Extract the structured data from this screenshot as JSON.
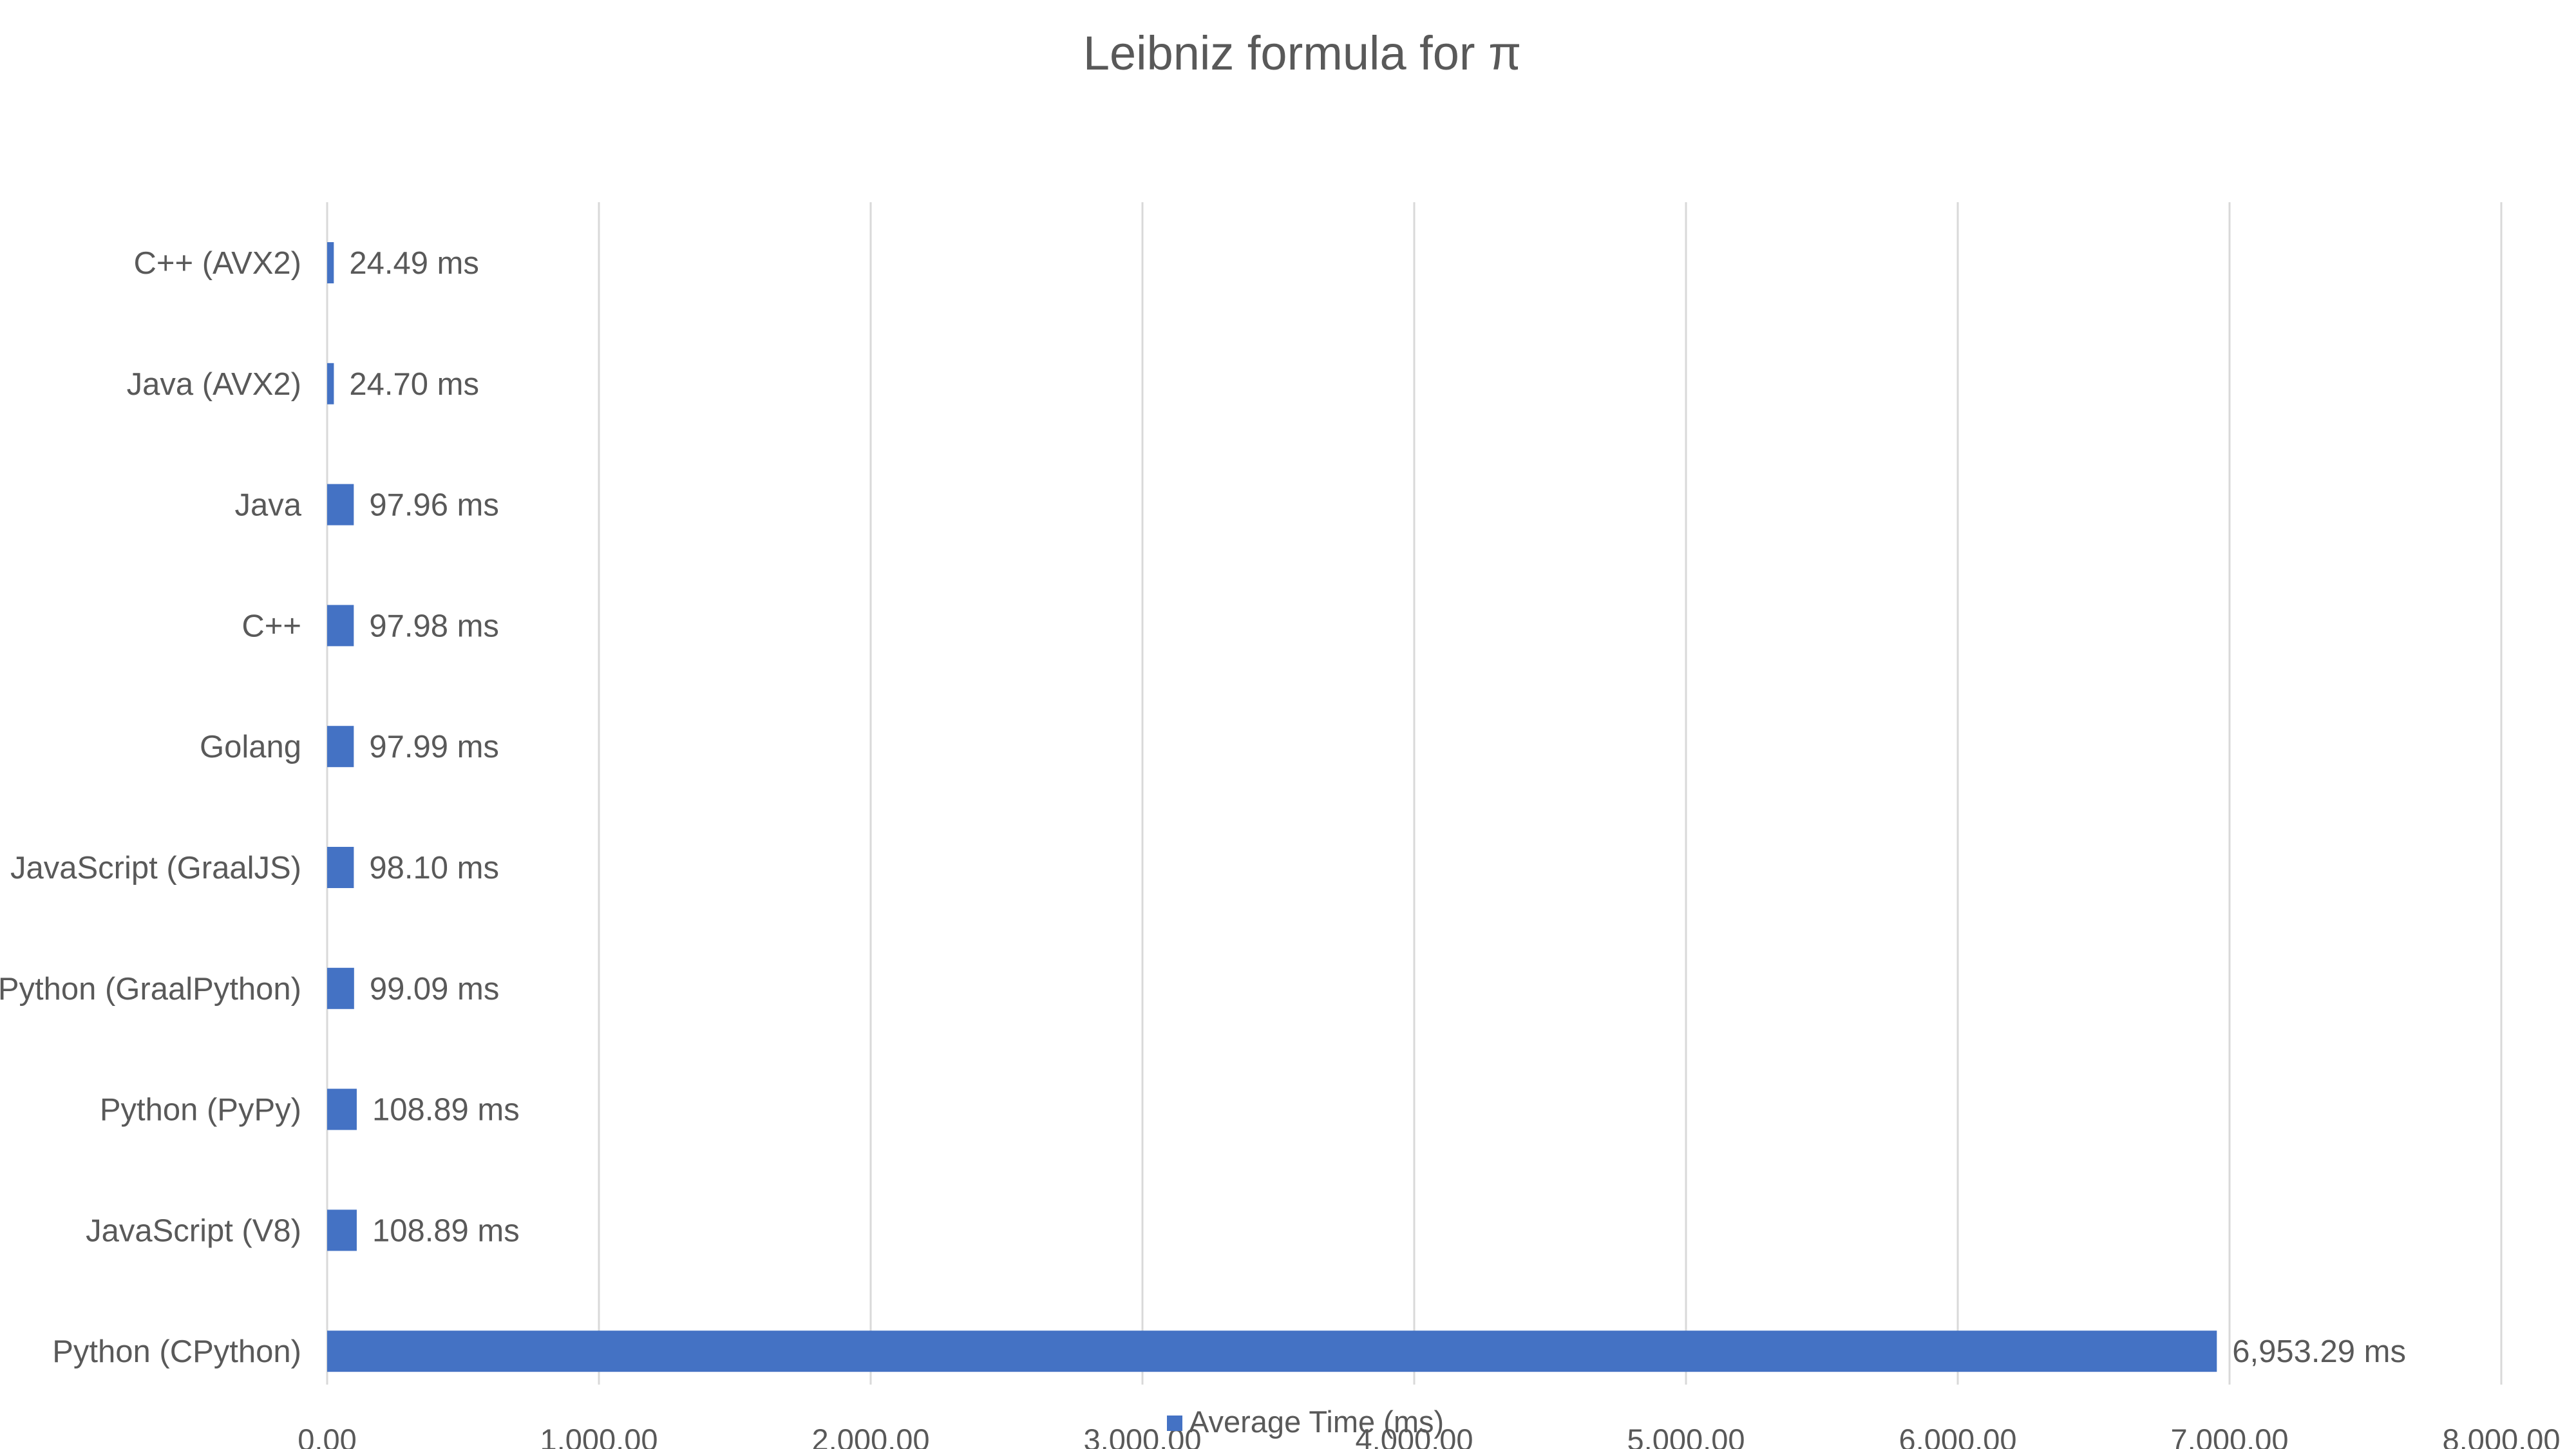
{
  "chart_data": {
    "type": "bar",
    "orientation": "horizontal",
    "title": "Leibniz formula for π",
    "xlabel": "",
    "ylabel": "",
    "categories": [
      "C++ (AVX2)",
      "Java (AVX2)",
      "Java",
      "C++",
      "Golang",
      "JavaScript (GraalJS)",
      "Python (GraalPython)",
      "Python (PyPy)",
      "JavaScript (V8)",
      "Python (CPython)"
    ],
    "series": [
      {
        "name": "Average Time (ms)",
        "color": "#4472c4",
        "values": [
          24.49,
          24.7,
          97.96,
          97.98,
          97.99,
          98.1,
          99.09,
          108.89,
          108.89,
          6953.29
        ],
        "data_labels": [
          "24.49 ms",
          "24.70 ms",
          "97.96 ms",
          "97.98 ms",
          "97.99 ms",
          "98.10 ms",
          "99.09 ms",
          "108.89 ms",
          "108.89 ms",
          "6,953.29 ms"
        ]
      }
    ],
    "xlim": [
      0,
      8000
    ],
    "x_ticks": [
      0,
      1000,
      2000,
      3000,
      4000,
      5000,
      6000,
      7000,
      8000
    ],
    "x_tick_labels": [
      "0.00",
      "1,000.00",
      "2,000.00",
      "3,000.00",
      "4,000.00",
      "5,000.00",
      "6,000.00",
      "7,000.00",
      "8,000.00"
    ],
    "grid": true,
    "legend_position": "bottom"
  }
}
